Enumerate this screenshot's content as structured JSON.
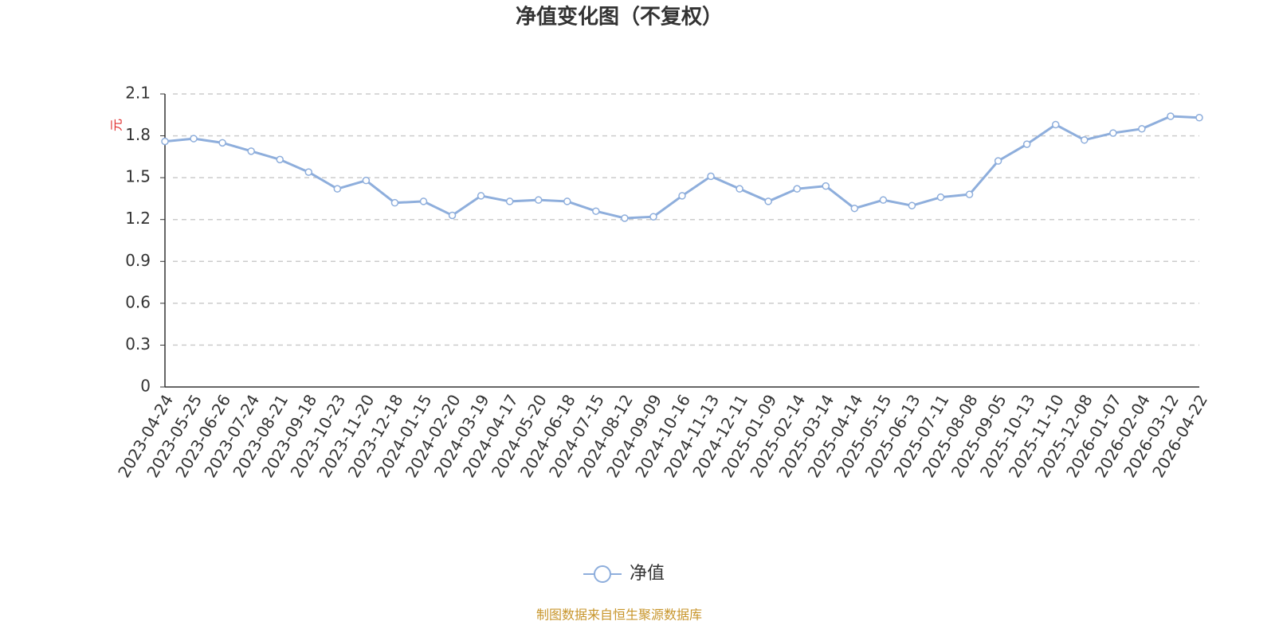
{
  "chart_data": {
    "type": "line",
    "title": "净值变化图（不复权）",
    "y_unit": "元",
    "categories": [
      "2023-04-24",
      "2023-05-25",
      "2023-06-26",
      "2023-07-24",
      "2023-08-21",
      "2023-09-18",
      "2023-10-23",
      "2023-11-20",
      "2023-12-18",
      "2024-01-15",
      "2024-02-20",
      "2024-03-19",
      "2024-04-17",
      "2024-05-20",
      "2024-06-18",
      "2024-07-15",
      "2024-08-12",
      "2024-09-09",
      "2024-10-16",
      "2024-11-13",
      "2024-12-11",
      "2025-01-09",
      "2025-02-14",
      "2025-03-14",
      "2025-04-14",
      "2025-05-15",
      "2025-06-13",
      "2025-07-11",
      "2025-08-08",
      "2025-09-05",
      "2025-10-13",
      "2025-11-10",
      "2025-12-08",
      "2026-01-07",
      "2026-02-04",
      "2026-03-12",
      "2026-04-22"
    ],
    "series": [
      {
        "name": "净值",
        "color": "#8eaedc",
        "values": [
          1.76,
          1.78,
          1.75,
          1.69,
          1.63,
          1.54,
          1.42,
          1.48,
          1.32,
          1.33,
          1.23,
          1.37,
          1.33,
          1.34,
          1.33,
          1.26,
          1.21,
          1.22,
          1.37,
          1.51,
          1.42,
          1.33,
          1.42,
          1.44,
          1.28,
          1.34,
          1.3,
          1.36,
          1.38,
          1.62,
          1.74,
          1.88,
          1.77,
          1.82,
          1.85,
          1.94,
          1.93
        ]
      }
    ],
    "ylim": [
      0,
      2.1
    ],
    "yticks": [
      0,
      0.3,
      0.6,
      0.9,
      1.2,
      1.5,
      1.8,
      2.1
    ],
    "grid": true,
    "legend": "bottom",
    "source": "制图数据来自恒生聚源数据库"
  }
}
